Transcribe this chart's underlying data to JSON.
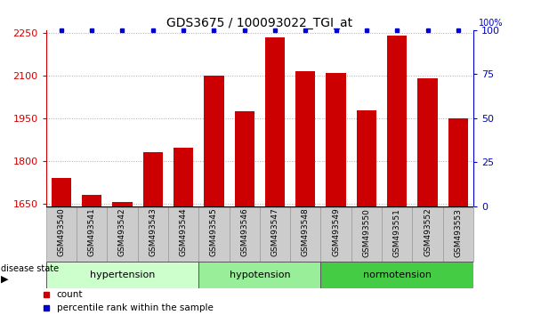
{
  "title": "GDS3675 / 100093022_TGI_at",
  "samples": [
    "GSM493540",
    "GSM493541",
    "GSM493542",
    "GSM493543",
    "GSM493544",
    "GSM493545",
    "GSM493546",
    "GSM493547",
    "GSM493548",
    "GSM493549",
    "GSM493550",
    "GSM493551",
    "GSM493552",
    "GSM493553"
  ],
  "counts": [
    1740,
    1680,
    1655,
    1830,
    1845,
    2100,
    1975,
    2235,
    2115,
    2110,
    1978,
    2240,
    2090,
    1950
  ],
  "groups": [
    {
      "label": "hypertension",
      "start": 0,
      "end": 5,
      "color": "#ccffcc"
    },
    {
      "label": "hypotension",
      "start": 5,
      "end": 9,
      "color": "#99ee99"
    },
    {
      "label": "normotension",
      "start": 9,
      "end": 14,
      "color": "#44cc44"
    }
  ],
  "ylim_left": [
    1640,
    2260
  ],
  "ylim_right": [
    0,
    100
  ],
  "yticks_left": [
    1650,
    1800,
    1950,
    2100,
    2250
  ],
  "yticks_right": [
    0,
    25,
    50,
    75,
    100
  ],
  "bar_color": "#cc0000",
  "dot_color": "#0000cc",
  "bar_width": 0.65,
  "background_color": "#ffffff",
  "title_fontsize": 10,
  "tick_fontsize": 8
}
